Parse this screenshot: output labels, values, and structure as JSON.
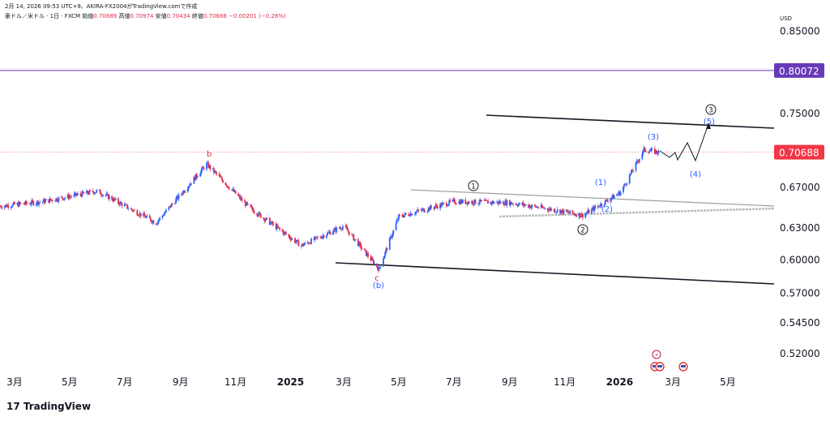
{
  "header": {
    "timestamp": "2月 14, 2026 09:53 UTC+9、AKIRA-FX2004がTradingView.comで作成",
    "symbol": "豪ドル／米ドル · 1日 · FXCM",
    "open_label": "始値",
    "open": "0.70889",
    "high_label": "高値",
    "high": "0.70974",
    "low_label": "安値",
    "low": "0.70434",
    "close_label": "終値",
    "close": "0.70688",
    "change": "−0.00201 (−0.28%)"
  },
  "axis": {
    "currency": "USD",
    "y_ticks": [
      "0.85000",
      "0.75000",
      "0.67000",
      "0.63000",
      "0.60000",
      "0.57000",
      "0.54500",
      "0.52000"
    ],
    "x_ticks": [
      "3月",
      "5月",
      "7月",
      "9月",
      "11月",
      "2025",
      "3月",
      "5月",
      "7月",
      "9月",
      "11月",
      "2026",
      "3月",
      "5月"
    ],
    "bold_x_ticks": [
      "2025",
      "2026"
    ]
  },
  "price_labels": {
    "line_level": "0.80072",
    "last_price": "0.70688"
  },
  "colors": {
    "up": "#2962ff",
    "down": "#e0294a",
    "purple": "#673ab7",
    "last_price": "#f23645"
  },
  "wave_labels": {
    "b": "b",
    "c": "c",
    "b_paren": "(b)",
    "w1_circle": "1",
    "w2_circle": "2",
    "w3_circle": "3",
    "w1": "(1)",
    "w2": "(2)",
    "w3": "(3)",
    "w4": "(4)",
    "w5": "(5)"
  },
  "branding": {
    "name": "TradingView"
  },
  "chart_data": {
    "type": "line",
    "symbol": "AUD/USD",
    "x": [
      "2024-02-14",
      "2024-04-01",
      "2024-06-01",
      "2024-08-05",
      "2024-09-30",
      "2024-11-15",
      "2025-01-13",
      "2025-03-01",
      "2025-04-09",
      "2025-05-01",
      "2025-07-01",
      "2025-09-01",
      "2025-10-15",
      "2025-11-21",
      "2026-01-02",
      "2026-01-28",
      "2026-02-13"
    ],
    "series": [
      {
        "values": [
          0.651,
          0.6556,
          0.6663,
          0.6348,
          0.6942,
          0.6507,
          0.6131,
          0.6318,
          0.5914,
          0.6408,
          0.6557,
          0.6545,
          0.6483,
          0.642,
          0.665,
          0.7095,
          0.70688
        ]
      }
    ],
    "y_scale": "log",
    "ylim": [
      0.505,
      0.875
    ],
    "xlim": [
      "2024-02-01",
      "2026-05-31"
    ],
    "horizontal_lines": [
      0.80072
    ],
    "last_price": 0.70688
  }
}
